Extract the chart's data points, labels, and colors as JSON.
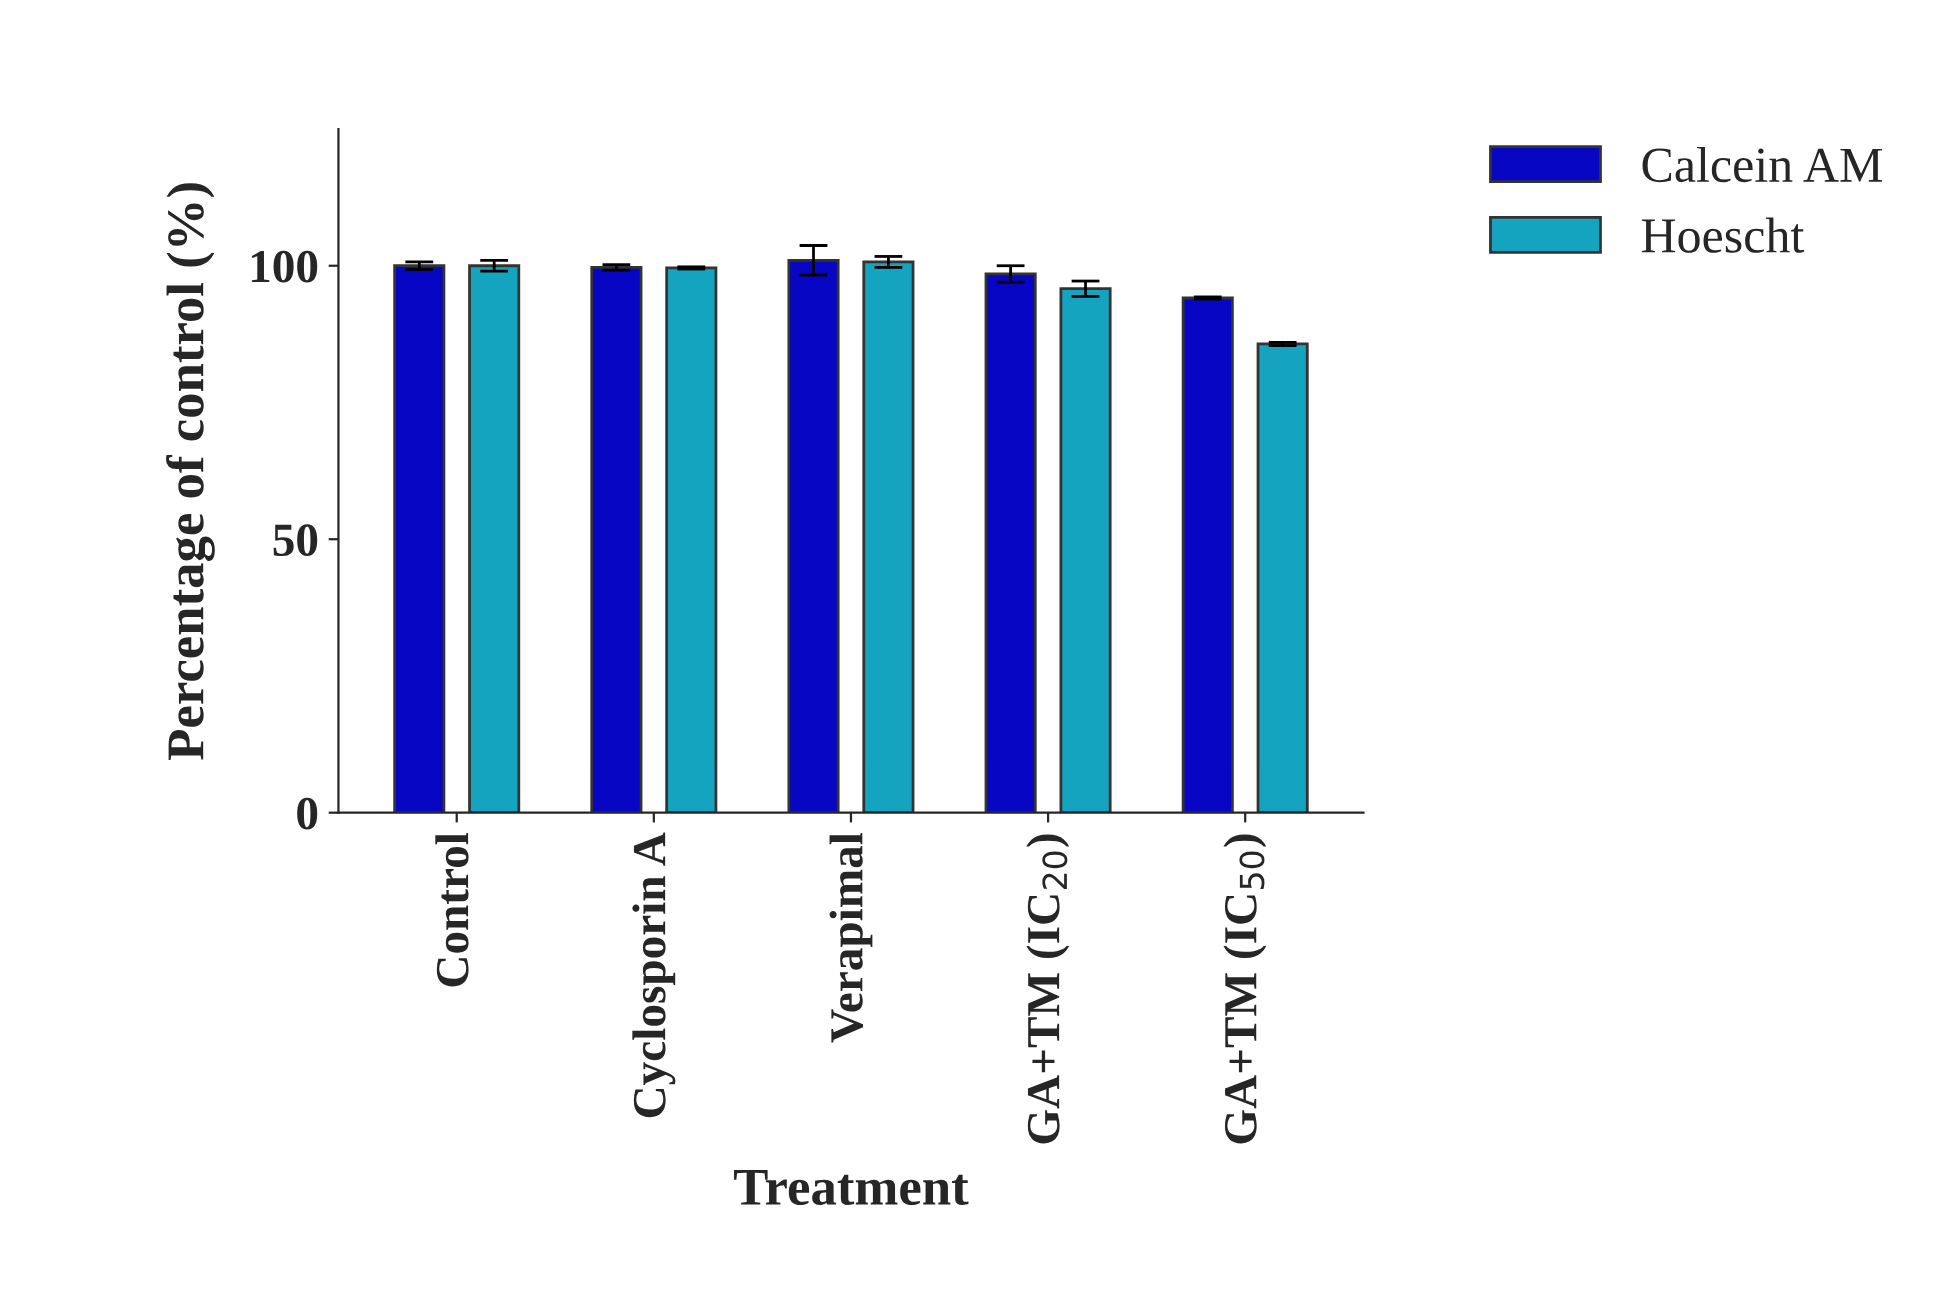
{
  "chart_data": {
    "type": "bar",
    "xlabel": "Treatment",
    "ylabel": "Percentage of control (%)",
    "categories": [
      "Control",
      "Cyclosporin A",
      "Verapimal",
      "GA+TM (IC$_{20}$)",
      "GA+TM (IC$_{50}$)"
    ],
    "series": [
      {
        "name": "Calcein AM",
        "color": "#0606c4",
        "values": [
          100,
          99.7,
          101,
          98.5,
          94.1
        ],
        "errors": [
          0.7,
          0.5,
          2.7,
          1.5,
          0.2
        ]
      },
      {
        "name": "Hoescht",
        "color": "#14a4bf",
        "values": [
          100,
          99.6,
          100.7,
          95.8,
          85.7
        ],
        "errors": [
          1.0,
          0.2,
          1.0,
          1.4,
          0.3
        ]
      }
    ],
    "ylim": [
      0,
      125
    ],
    "yticks": [
      0,
      50,
      100
    ],
    "grid": false,
    "legend": "top right"
  }
}
